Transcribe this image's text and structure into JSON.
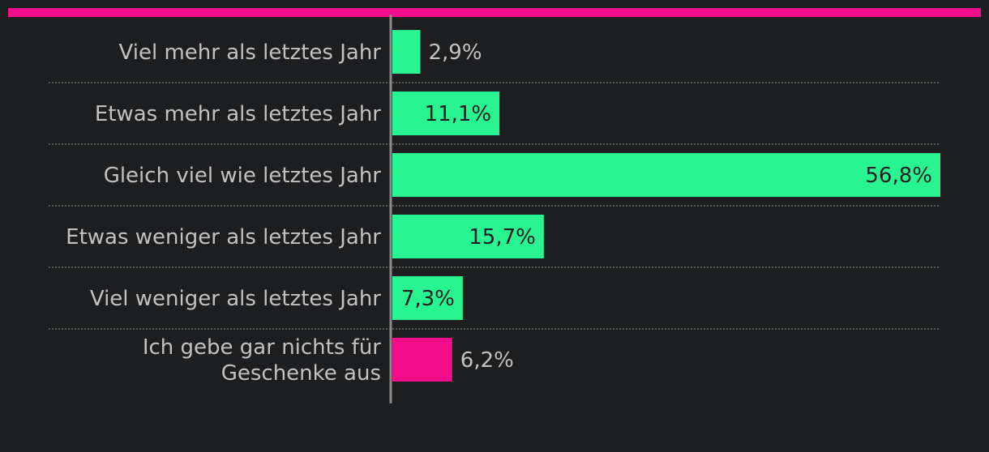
{
  "colors": {
    "background": "#1d1e20",
    "accent_bar": "#f50e8c",
    "bar_default": "#28f591",
    "bar_highlight": "#f50e8c",
    "label_text": "#c2c2c2",
    "value_text_inside": "#1d1e20",
    "value_text_outside": "#c2c2c2",
    "axis_line": "#8a8a8a",
    "grid_line": "#6b6b6b"
  },
  "chart_data": {
    "type": "bar",
    "orientation": "horizontal",
    "title": "",
    "xlabel": "",
    "ylabel": "",
    "xlim": [
      0,
      56.8
    ],
    "unit": "%",
    "categories": [
      [
        "Viel mehr als letztes Jahr"
      ],
      [
        "Etwas mehr als letztes Jahr"
      ],
      [
        "Gleich viel wie letztes Jahr"
      ],
      [
        "Etwas weniger als letztes Jahr"
      ],
      [
        "Viel weniger als letztes Jahr"
      ],
      [
        "Ich gebe gar nichts für",
        "Geschenke aus"
      ]
    ],
    "values": [
      2.9,
      11.1,
      56.8,
      15.7,
      7.3,
      6.2
    ],
    "value_labels": [
      "2,9%",
      "11,1%",
      "56,8%",
      "15,7%",
      "7,3%",
      "6,2%"
    ],
    "highlight_index": 5
  }
}
